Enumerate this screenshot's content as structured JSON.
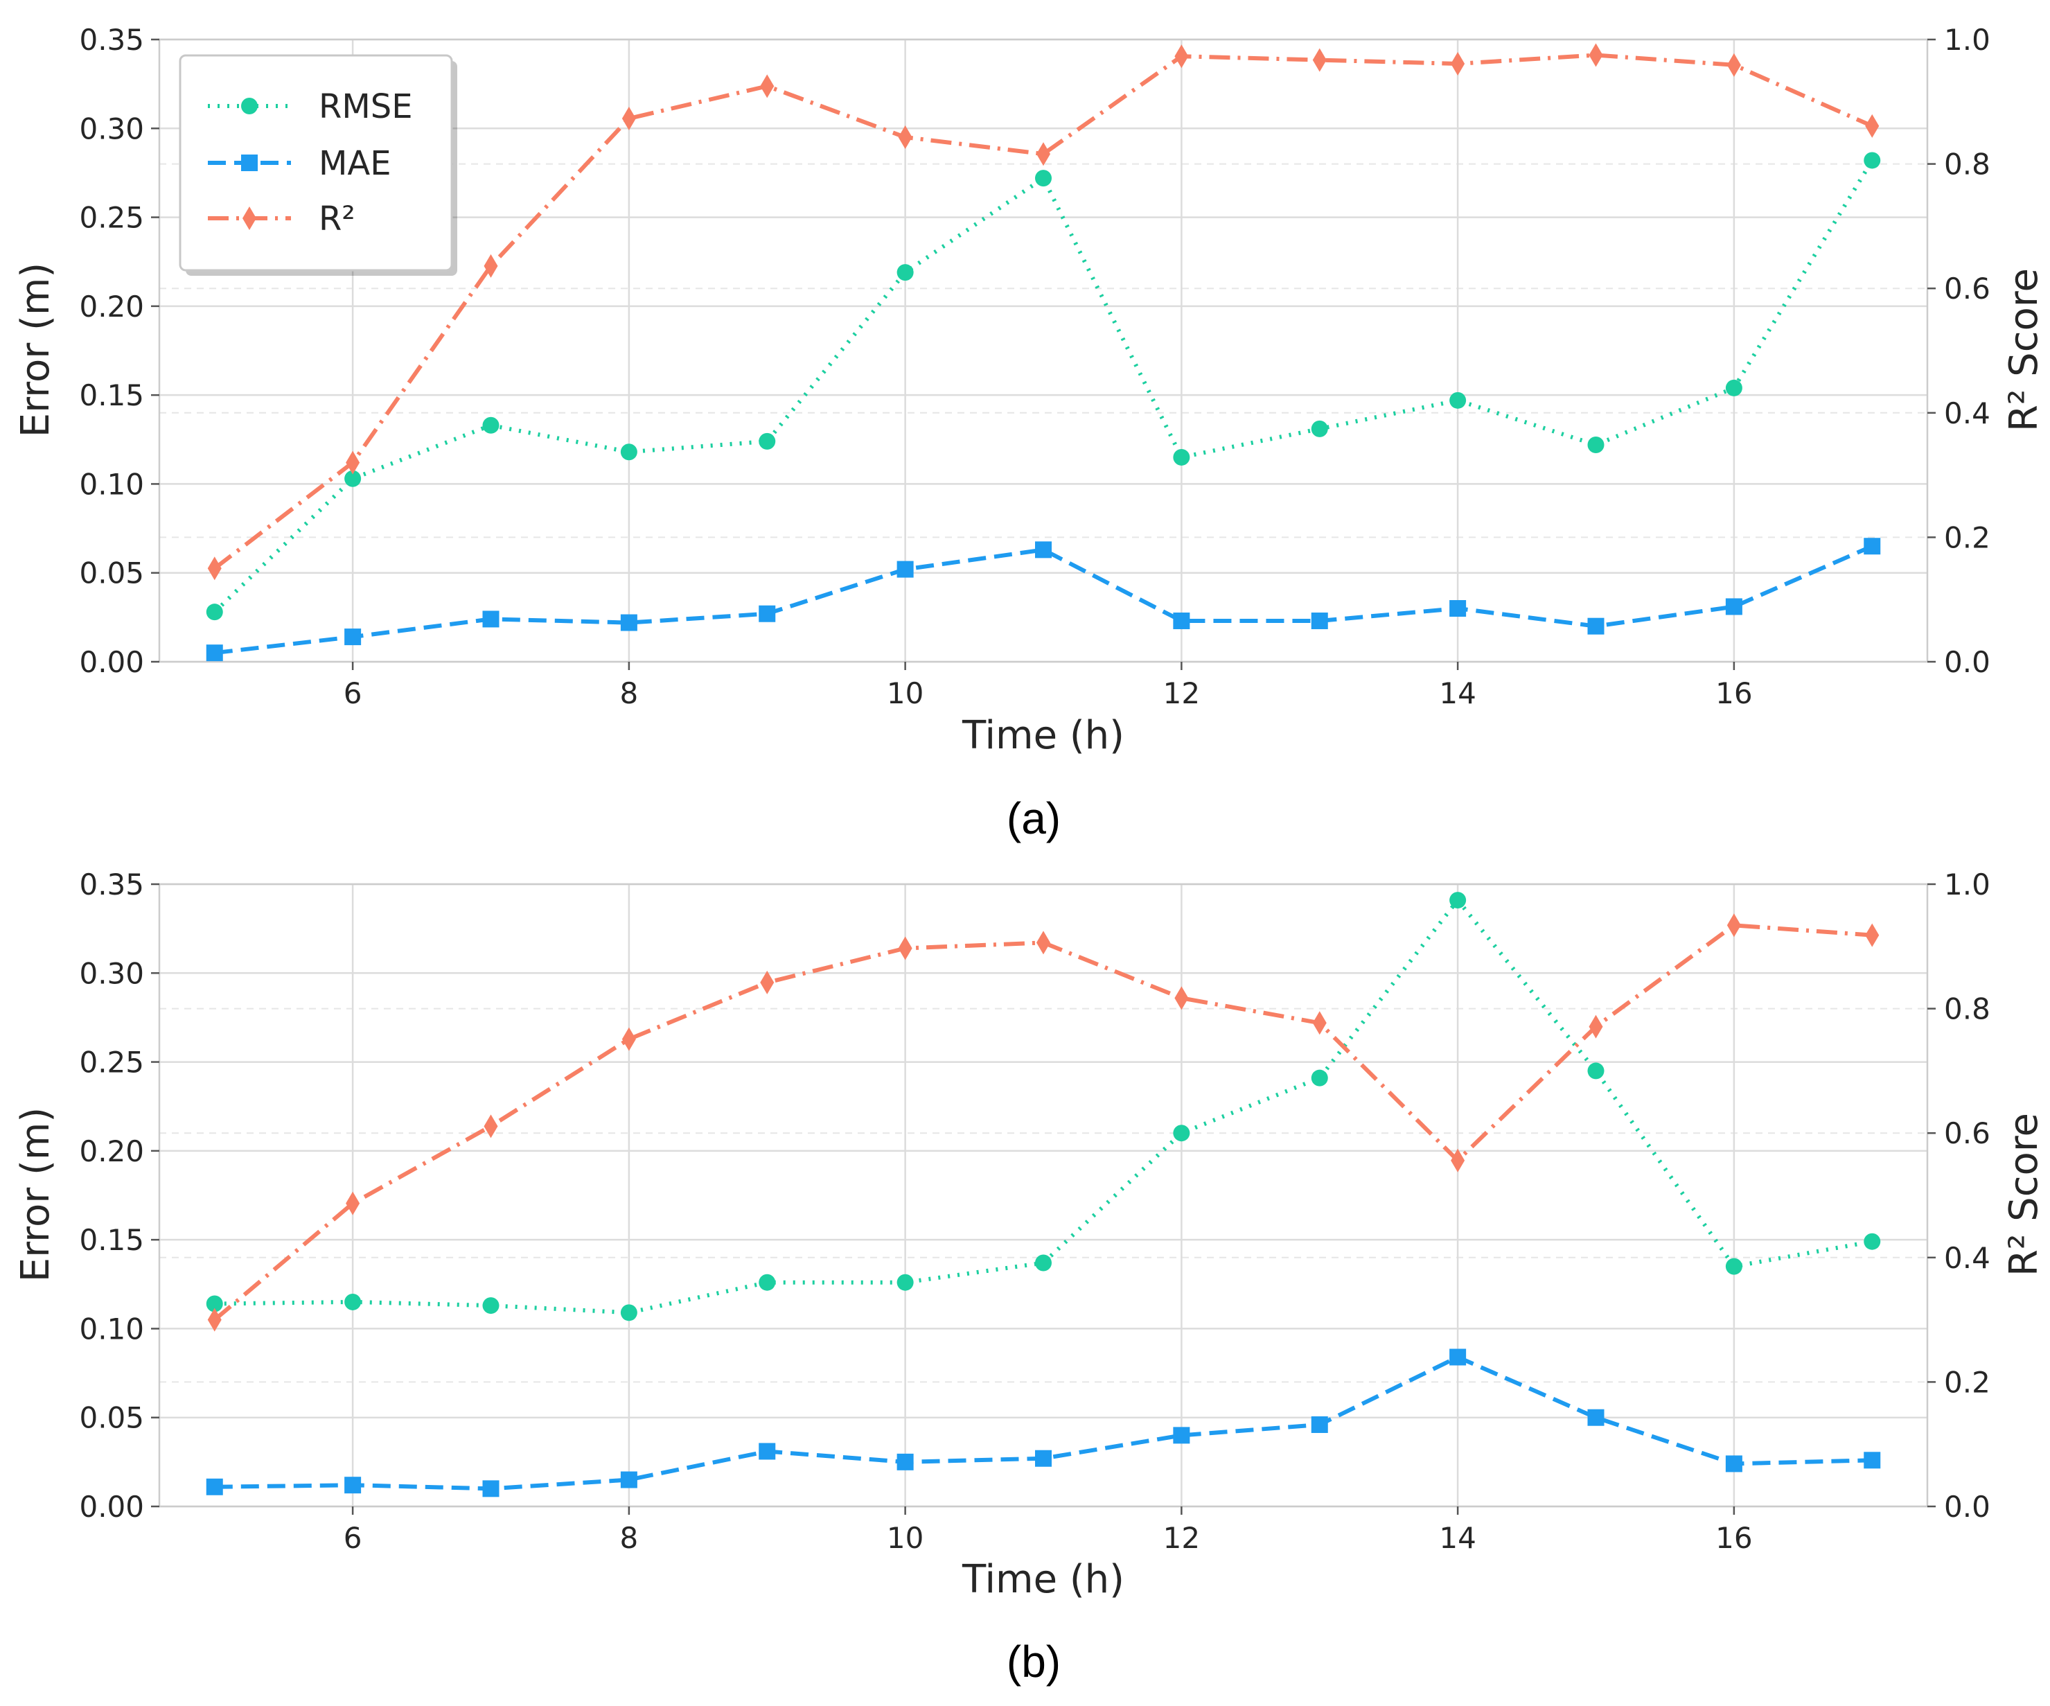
{
  "colors": {
    "rmse": "#1ccfa0",
    "mae": "#1e9bf0",
    "r2": "#f77f64"
  },
  "legend": {
    "entries": [
      {
        "key": "rmse",
        "label": "RMSE",
        "icon": "circle-marker-icon"
      },
      {
        "key": "mae",
        "label": "MAE",
        "icon": "square-marker-icon"
      },
      {
        "key": "r2",
        "label": "R²",
        "icon": "diamond-marker-icon"
      }
    ]
  },
  "chart_data": [
    {
      "type": "line",
      "caption": "(a)",
      "xlabel": "Time (h)",
      "ylabel": "Error (m)",
      "y2label": "R² Score",
      "xlim": [
        4.6,
        17.4
      ],
      "ylim": [
        0,
        0.35
      ],
      "y2lim": [
        0,
        1.0
      ],
      "x": [
        5,
        6,
        7,
        8,
        9,
        10,
        11,
        12,
        13,
        14,
        15,
        16,
        17
      ],
      "xticks": [
        "6",
        "8",
        "10",
        "12",
        "14",
        "16"
      ],
      "yticks": [
        "0.00",
        "0.05",
        "0.10",
        "0.15",
        "0.20",
        "0.25",
        "0.30",
        "0.35"
      ],
      "y2ticks": [
        "0.0",
        "0.2",
        "0.4",
        "0.6",
        "0.8",
        "1.0"
      ],
      "grid": true,
      "legend_position": "top-left",
      "series": [
        {
          "name": "RMSE",
          "key": "rmse",
          "axis": "left",
          "style": "dotted",
          "marker": "circle",
          "values": [
            0.028,
            0.103,
            0.133,
            0.118,
            0.124,
            0.219,
            0.272,
            0.115,
            0.131,
            0.147,
            0.122,
            0.154,
            0.282
          ]
        },
        {
          "name": "MAE",
          "key": "mae",
          "axis": "left",
          "style": "dashed",
          "marker": "square",
          "values": [
            0.005,
            0.014,
            0.024,
            0.022,
            0.027,
            0.052,
            0.063,
            0.023,
            0.023,
            0.03,
            0.02,
            0.031,
            0.065
          ]
        },
        {
          "name": "R²",
          "key": "r2",
          "axis": "right",
          "style": "dashdot",
          "marker": "diamond",
          "values": [
            0.15,
            0.32,
            0.636,
            0.873,
            0.925,
            0.843,
            0.816,
            0.973,
            0.967,
            0.961,
            0.975,
            0.959,
            0.861
          ]
        }
      ]
    },
    {
      "type": "line",
      "caption": "(b)",
      "xlabel": "Time (h)",
      "ylabel": "Error (m)",
      "y2label": "R² Score",
      "xlim": [
        4.6,
        17.4
      ],
      "ylim": [
        0,
        0.35
      ],
      "y2lim": [
        0,
        1.0
      ],
      "x": [
        5,
        6,
        7,
        8,
        9,
        10,
        11,
        12,
        13,
        14,
        15,
        16,
        17
      ],
      "xticks": [
        "6",
        "8",
        "10",
        "12",
        "14",
        "16"
      ],
      "yticks": [
        "0.00",
        "0.05",
        "0.10",
        "0.15",
        "0.20",
        "0.25",
        "0.30",
        "0.35"
      ],
      "y2ticks": [
        "0.0",
        "0.2",
        "0.4",
        "0.6",
        "0.8",
        "1.0"
      ],
      "grid": true,
      "legend_position": "none",
      "series": [
        {
          "name": "RMSE",
          "key": "rmse",
          "axis": "left",
          "style": "dotted",
          "marker": "circle",
          "values": [
            0.114,
            0.115,
            0.113,
            0.109,
            0.126,
            0.126,
            0.137,
            0.21,
            0.241,
            0.341,
            0.245,
            0.135,
            0.149
          ]
        },
        {
          "name": "MAE",
          "key": "mae",
          "axis": "left",
          "style": "dashed",
          "marker": "square",
          "values": [
            0.011,
            0.012,
            0.01,
            0.015,
            0.031,
            0.025,
            0.027,
            0.04,
            0.046,
            0.084,
            0.05,
            0.024,
            0.026
          ]
        },
        {
          "name": "R²",
          "key": "r2",
          "axis": "right",
          "style": "dashdot",
          "marker": "diamond",
          "values": [
            0.3,
            0.487,
            0.611,
            0.751,
            0.842,
            0.897,
            0.906,
            0.817,
            0.777,
            0.556,
            0.771,
            0.934,
            0.918
          ]
        }
      ]
    }
  ]
}
